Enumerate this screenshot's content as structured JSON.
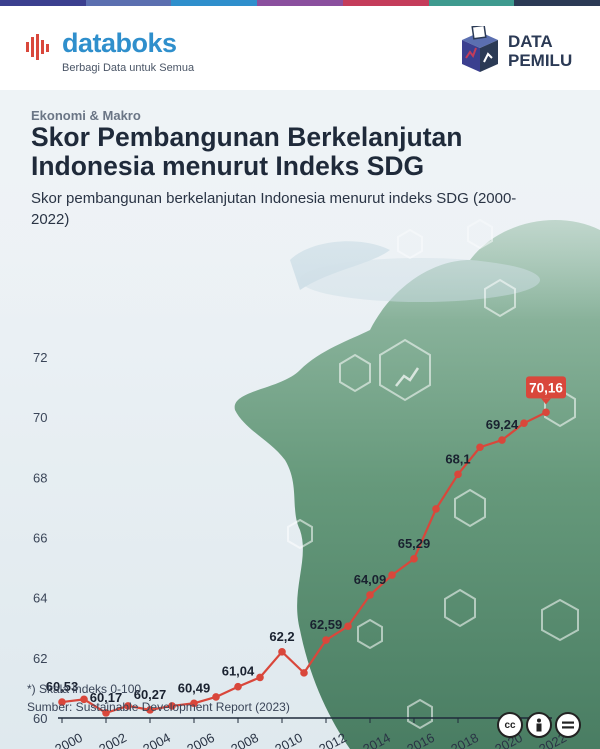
{
  "brand": {
    "name": "databoks",
    "tagline": "Berbagi Data untuk Semua",
    "partner_line1": "DATA",
    "partner_line2": "PEMILU",
    "bar_colors": [
      "#3b3f8f",
      "#5b6fb0",
      "#2f8fcc",
      "#8a4f9e",
      "#c43c5a",
      "#3e9a8f",
      "#2b3a55"
    ]
  },
  "category": "Ekonomi & Makro",
  "title": "Skor Pembangunan Berkelanjutan Indonesia menurut Indeks SDG",
  "subtitle": "Skor pembangunan berkelanjutan Indonesia menurut indeks SDG (2000-2022)",
  "footnote": "*) Skala indeks 0-100",
  "source": "Sumber: Sustainable Development Report (2023)",
  "license_icons": [
    "cc-icon",
    "by-icon",
    "nd-icon"
  ],
  "chart_data": {
    "type": "line",
    "title": "Skor pembangunan berkelanjutan Indonesia menurut indeks SDG (2000-2022)",
    "xlabel": "",
    "ylabel": "",
    "x": [
      2000,
      2001,
      2002,
      2003,
      2004,
      2005,
      2006,
      2007,
      2008,
      2009,
      2010,
      2011,
      2012,
      2013,
      2014,
      2015,
      2016,
      2017,
      2018,
      2019,
      2020,
      2021,
      2022
    ],
    "values": [
      60.53,
      60.62,
      60.17,
      60.4,
      60.27,
      60.4,
      60.49,
      60.7,
      61.04,
      61.35,
      62.2,
      61.5,
      62.59,
      63.05,
      64.09,
      64.75,
      65.29,
      66.95,
      68.1,
      69.0,
      69.24,
      69.8,
      70.16
    ],
    "data_labels": [
      {
        "x": 2000,
        "text": "60,53"
      },
      {
        "x": 2002,
        "text": "60,17"
      },
      {
        "x": 2004,
        "text": "60,27"
      },
      {
        "x": 2006,
        "text": "60,49"
      },
      {
        "x": 2008,
        "text": "61,04"
      },
      {
        "x": 2010,
        "text": "62,2"
      },
      {
        "x": 2012,
        "text": "62,59"
      },
      {
        "x": 2014,
        "text": "64,09"
      },
      {
        "x": 2016,
        "text": "65,29"
      },
      {
        "x": 2018,
        "text": "68,1"
      },
      {
        "x": 2020,
        "text": "69,24"
      },
      {
        "x": 2022,
        "text": "70,16",
        "highlight": true
      }
    ],
    "y_ticks": [
      60,
      62,
      64,
      66,
      68,
      70,
      72
    ],
    "x_ticks": [
      2000,
      2002,
      2004,
      2006,
      2008,
      2010,
      2012,
      2014,
      2016,
      2018,
      2020,
      2022
    ],
    "ylim": [
      60,
      72
    ],
    "grid": false,
    "line_color": "#d9473b",
    "highlight_color": "#d9473b"
  }
}
